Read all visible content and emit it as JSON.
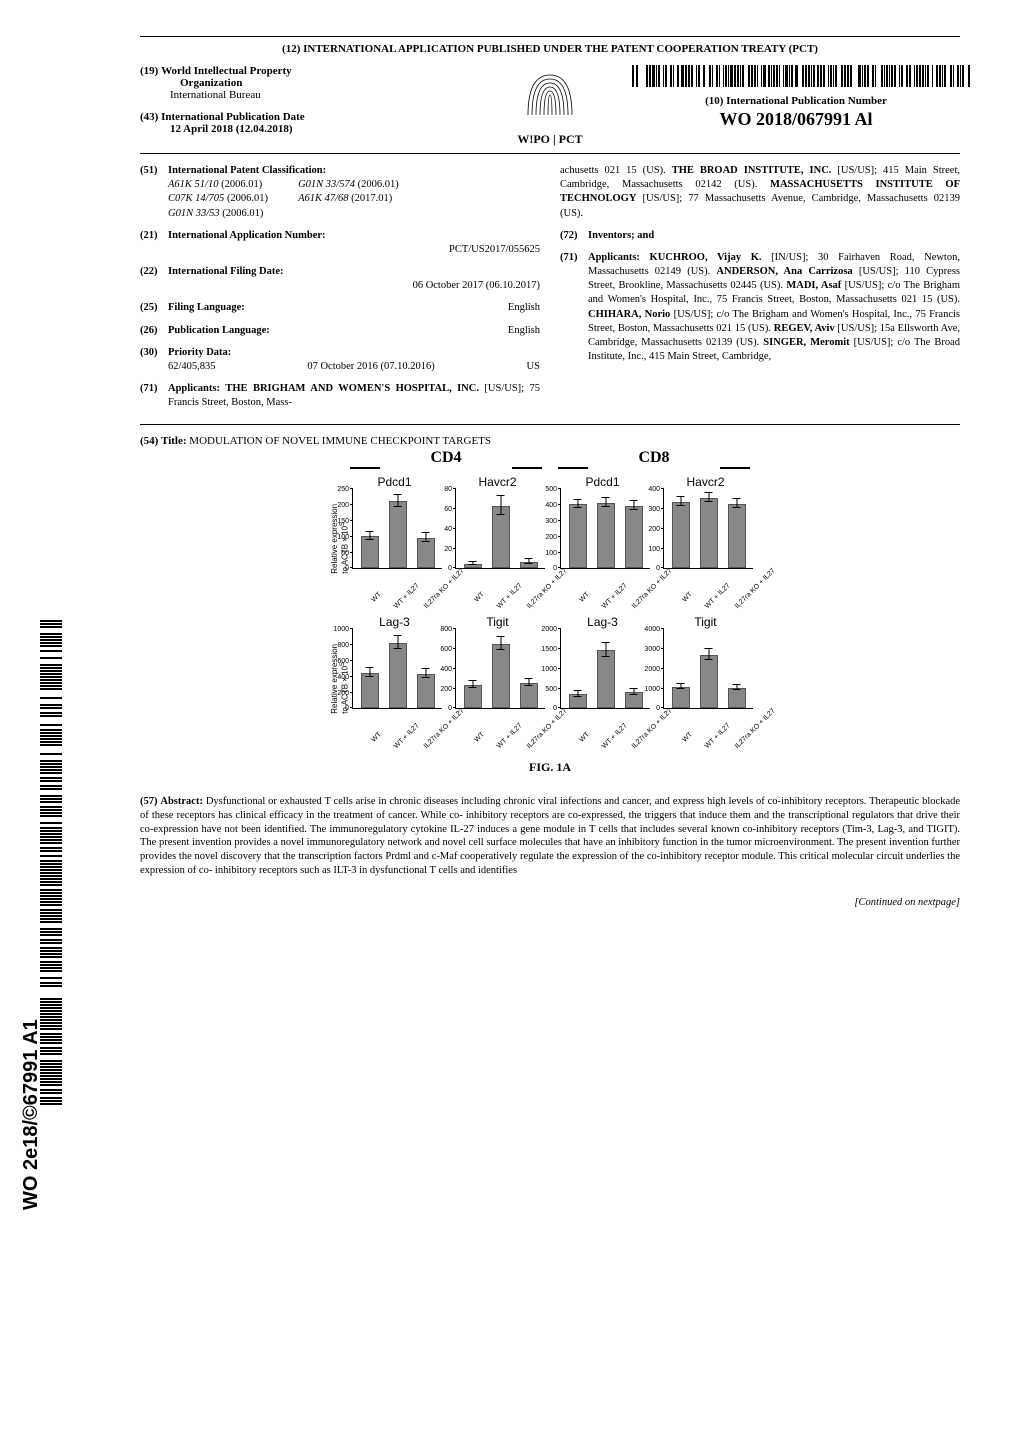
{
  "pct_heading": "(12) INTERNATIONAL APPLICATION PUBLISHED UNDER THE PATENT COOPERATION TREATY (PCT)",
  "org": {
    "num": "(19)",
    "name_l1": "World Intellectual Property",
    "name_l2": "Organization",
    "sub": "International Bureau"
  },
  "pub_date": {
    "num": "(43)",
    "label": "International Publication Date",
    "value": "12 April 2018 (12.04.2018)"
  },
  "wipo_tag": "W!PO | PCT",
  "pub_num": {
    "num": "(10)",
    "label": "International Publication Number",
    "value": "WO 2018/067991 Al"
  },
  "side_pubnum": "WO 2e18/©67991 A1",
  "biblio": {
    "ipc": {
      "num": "(51)",
      "label": "International Patent Classification:",
      "codes": [
        {
          "c": "A61K 51/10",
          "d": "(2006.01)"
        },
        {
          "c": "C07K 14/705",
          "d": "(2006.01)"
        },
        {
          "c": "G01N 33/53",
          "d": "(2006.01)"
        },
        {
          "c": "G01N 33/574",
          "d": "(2006.01)"
        },
        {
          "c": "A61K 47/68",
          "d": "(2017.01)"
        }
      ]
    },
    "appnum": {
      "num": "(21)",
      "label": "International Application Number:",
      "value": "PCT/US2017/055625"
    },
    "filedate": {
      "num": "(22)",
      "label": "International Filing Date:",
      "value": "06 October 2017 (06.10.2017)"
    },
    "filelang": {
      "num": "(25)",
      "label": "Filing Language:",
      "value": "English"
    },
    "publang": {
      "num": "(26)",
      "label": "Publication Language:",
      "value": "English"
    },
    "priority": {
      "num": "(30)",
      "label": "Priority Data:",
      "app": "62/405,835",
      "date": "07 October 2016 (07.10.2016)",
      "cc": "US"
    },
    "applicants_left": {
      "num": "(71)",
      "label": "Applicants:",
      "text": "THE BRIGHAM AND WOMEN'S HOSPITAL, INC. [US/US]; 75 Francis Street, Boston, Mass-"
    },
    "applicants_right_cont": "achusetts 021 15 (US). THE BROAD INSTITUTE, INC. [US/US]; 415 Main Street, Cambridge, Massachusetts 02142 (US). MASSACHUSETTS INSTITUTE OF TECHNOLOGY [US/US]; 77 Massachusetts Avenue, Cambridge, Massachusetts 02139 (US).",
    "inventors": {
      "num": "(72)",
      "label": "Inventors; and"
    },
    "inv_applicants": {
      "num": "(71)",
      "label": "Applicants:",
      "text": "KUCHROO, Vijay K. [IN/US]; 30 Fairhaven Road, Newton, Massachusetts 02149 (US). ANDERSON, Ana Carrizosa [US/US]; 110 Cypress Street, Brookline, Massachusetts 02445 (US). MADI, Asaf [US/US]; c/o The Brigham and Women's Hospital, Inc., 75 Francis Street, Boston, Massachusetts 021 15 (US). CHIHARA, Norio [US/US]; c/o The Brigham and Women's Hospital, Inc., 75 Francis Street, Boston, Massachusetts 021 15 (US). REGEV, Aviv [US/US]; 15a Ellsworth Ave, Cambridge, Massachusetts 02139 (US). SINGER, Meromit [US/US]; c/o The Broad Institute, Inc., 415 Main Street, Cambridge,"
    }
  },
  "title": {
    "num": "(54)",
    "label": "Title:",
    "text": "MODULATION OF NOVEL IMMUNE CHECKPOINT TARGETS"
  },
  "figure": {
    "groups": [
      {
        "name": "CD4",
        "ylabel": "Relative expression\nto ACTB × 10⁵",
        "x_categories": [
          "WT",
          "WT + IL27",
          "IL27ra KO + IL27"
        ],
        "charts": [
          {
            "title": "Pdcd1",
            "ymax": 250,
            "ytick_step": 50,
            "values": [
              100,
              210,
              95
            ],
            "errors": [
              15,
              20,
              15
            ]
          },
          {
            "title": "Havcr2",
            "ymax": 80,
            "ytick_step": 20,
            "values": [
              4,
              62,
              6
            ],
            "errors": [
              2,
              10,
              3
            ]
          },
          {
            "title": "Lag-3",
            "ymax": 1000,
            "ytick_step": 200,
            "values": [
              440,
              820,
              430
            ],
            "errors": [
              60,
              90,
              60
            ]
          },
          {
            "title": "Tigit",
            "ymax": 800,
            "ytick_step": 200,
            "values": [
              230,
              640,
              250
            ],
            "errors": [
              40,
              70,
              40
            ]
          }
        ]
      },
      {
        "name": "CD8",
        "ylabel": "",
        "x_categories": [
          "WT",
          "WT + IL27",
          "IL27ra KO + IL27"
        ],
        "charts": [
          {
            "title": "Pdcd1",
            "ymax": 500,
            "ytick_step": 100,
            "values": [
              400,
              410,
              390
            ],
            "errors": [
              30,
              30,
              30
            ]
          },
          {
            "title": "Havcr2",
            "ymax": 400,
            "ytick_step": 100,
            "values": [
              330,
              350,
              320
            ],
            "errors": [
              25,
              25,
              25
            ]
          },
          {
            "title": "Lag-3",
            "ymax": 2000,
            "ytick_step": 500,
            "values": [
              350,
              1450,
              400
            ],
            "errors": [
              80,
              180,
              80
            ]
          },
          {
            "title": "Tigit",
            "ymax": 4000,
            "ytick_step": 1000,
            "values": [
              1050,
              2650,
              1000
            ],
            "errors": [
              150,
              300,
              150
            ]
          }
        ]
      }
    ],
    "bar_color": "#888888",
    "bar_border": "#555555",
    "caption": "FIG. 1A"
  },
  "abstract": {
    "num": "(57)",
    "label": "Abstract:",
    "text": "Dysfunctional or exhausted T cells arise in chronic diseases including chronic viral infections and cancer, and express high levels of co-inhibitory receptors. Therapeutic blockade of these receptors has clinical efficacy in the treatment of cancer. While co- inhibitory receptors are co-expressed, the triggers that induce them and the transcriptional regulators that drive their co-expression have not been identified. The immunoregulatory cytokine IL-27 induces a gene module in T cells that includes several known co-inhibitory receptors (Tim-3, Lag-3, and TIGIT). The present invention provides a novel immunoregulatory network and novel cell surface molecules that have an inhibitory function in the tumor microenvironment. The present invention further provides the novel discovery that the transcription factors Prdml and c-Maf cooperatively regulate the expression of the co-inhibitory receptor module. This critical molecular circuit underlies the expression of co- inhibitory receptors such as ILT-3 in dysfunctional T cells and identifies"
  },
  "continued": "[Continued on nextpage]"
}
